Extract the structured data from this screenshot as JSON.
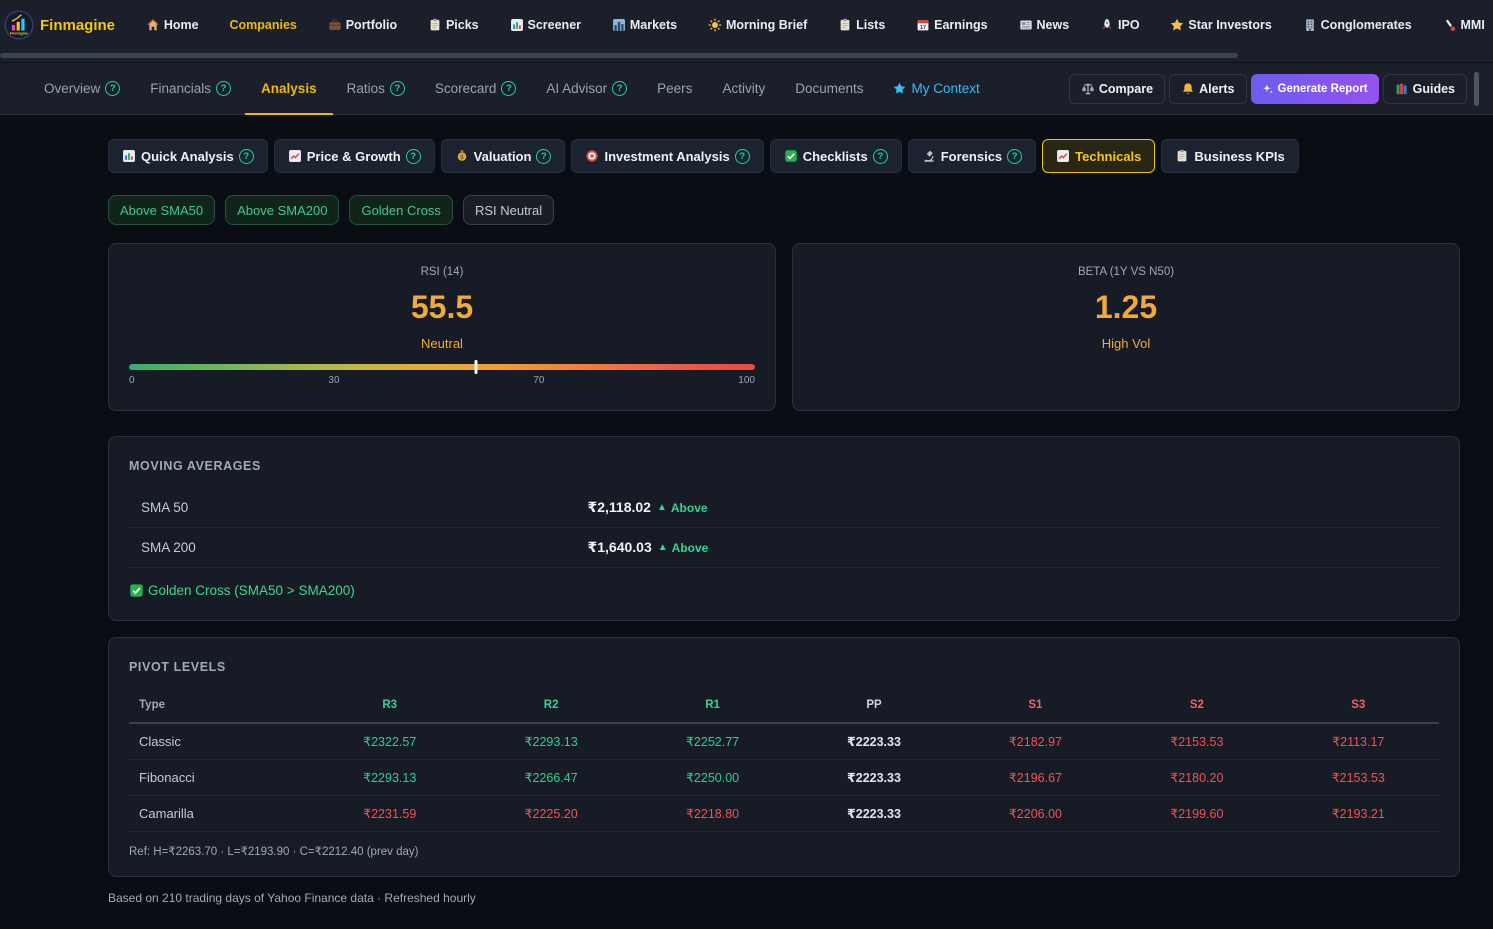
{
  "brand": {
    "name": "Finmagine"
  },
  "glyphs": {
    "help": "?",
    "up": "▲"
  },
  "colors": {
    "accent_yellow": "#f0b90b",
    "green": "#34d399",
    "red": "#f4524d",
    "orange": "#f2a93b",
    "purple": "#7f56f0",
    "cyan": "#38bdf8",
    "help_teal": "#21d3a0"
  },
  "navbar": {
    "items": [
      {
        "label": "Home"
      },
      {
        "label": "Companies"
      },
      {
        "label": "Portfolio"
      },
      {
        "label": "Picks"
      },
      {
        "label": "Screener"
      },
      {
        "label": "Markets"
      },
      {
        "label": "Morning Brief"
      },
      {
        "label": "Lists"
      },
      {
        "label": "Earnings"
      },
      {
        "label": "News"
      },
      {
        "label": "IPO"
      },
      {
        "label": "Star Investors"
      },
      {
        "label": "Conglomerates"
      },
      {
        "label": "MMI"
      }
    ]
  },
  "tabbar": {
    "tabs": [
      {
        "label": "Overview"
      },
      {
        "label": "Financials"
      },
      {
        "label": "Analysis"
      },
      {
        "label": "Ratios"
      },
      {
        "label": "Scorecard"
      },
      {
        "label": "AI Advisor"
      },
      {
        "label": "Peers"
      },
      {
        "label": "Activity"
      },
      {
        "label": "Documents"
      },
      {
        "label": "My Context"
      }
    ],
    "actions": [
      {
        "label": "Compare"
      },
      {
        "label": "Alerts"
      },
      {
        "label": "Generate Report"
      },
      {
        "label": "Guides"
      }
    ]
  },
  "subtabs": [
    {
      "label": "Quick Analysis"
    },
    {
      "label": "Price & Growth"
    },
    {
      "label": "Valuation"
    },
    {
      "label": "Investment Analysis"
    },
    {
      "label": "Checklists"
    },
    {
      "label": "Forensics"
    },
    {
      "label": "Technicals"
    },
    {
      "label": "Business KPIs"
    }
  ],
  "chips": [
    {
      "label": "Above SMA50",
      "tone": "green"
    },
    {
      "label": "Above SMA200",
      "tone": "green"
    },
    {
      "label": "Golden Cross",
      "tone": "green"
    },
    {
      "label": "RSI Neutral",
      "tone": "neutral"
    }
  ],
  "rsi": {
    "title": "RSI (14)",
    "value": "55.5",
    "status": "Neutral",
    "marker_pct": 55.5,
    "scale": [
      "0",
      "30",
      "70",
      "100"
    ]
  },
  "beta": {
    "title": "BETA (1Y VS N50)",
    "value": "1.25",
    "status": "High Vol"
  },
  "moving_averages": {
    "title": "MOVING AVERAGES",
    "rows": [
      {
        "label": "SMA 50",
        "value": "₹2,118.02",
        "status": "Above"
      },
      {
        "label": "SMA 200",
        "value": "₹1,640.03",
        "status": "Above"
      }
    ],
    "note": "Golden Cross (SMA50 > SMA200)"
  },
  "pivot": {
    "title": "PIVOT LEVELS",
    "headers": [
      "Type",
      "R3",
      "R2",
      "R1",
      "PP",
      "S1",
      "S2",
      "S3"
    ],
    "rows": [
      {
        "type": "Classic",
        "r3": "₹2322.57",
        "r2": "₹2293.13",
        "r1": "₹2252.77",
        "pp": "₹2223.33",
        "s1": "₹2182.97",
        "s2": "₹2153.53",
        "s3": "₹2113.17"
      },
      {
        "type": "Fibonacci",
        "r3": "₹2293.13",
        "r2": "₹2266.47",
        "r1": "₹2250.00",
        "pp": "₹2223.33",
        "s1": "₹2196.67",
        "s2": "₹2180.20",
        "s3": "₹2153.53"
      },
      {
        "type": "Camarilla",
        "r3": "₹2231.59",
        "r2": "₹2225.20",
        "r1": "₹2218.80",
        "pp": "₹2223.33",
        "s1": "₹2206.00",
        "s2": "₹2199.60",
        "s3": "₹2193.21"
      }
    ],
    "ref": "Ref: H=₹2263.70 · L=₹2193.90 · C=₹2212.40 (prev day)"
  },
  "footnote": "Based on 210 trading days of Yahoo Finance data · Refreshed hourly"
}
